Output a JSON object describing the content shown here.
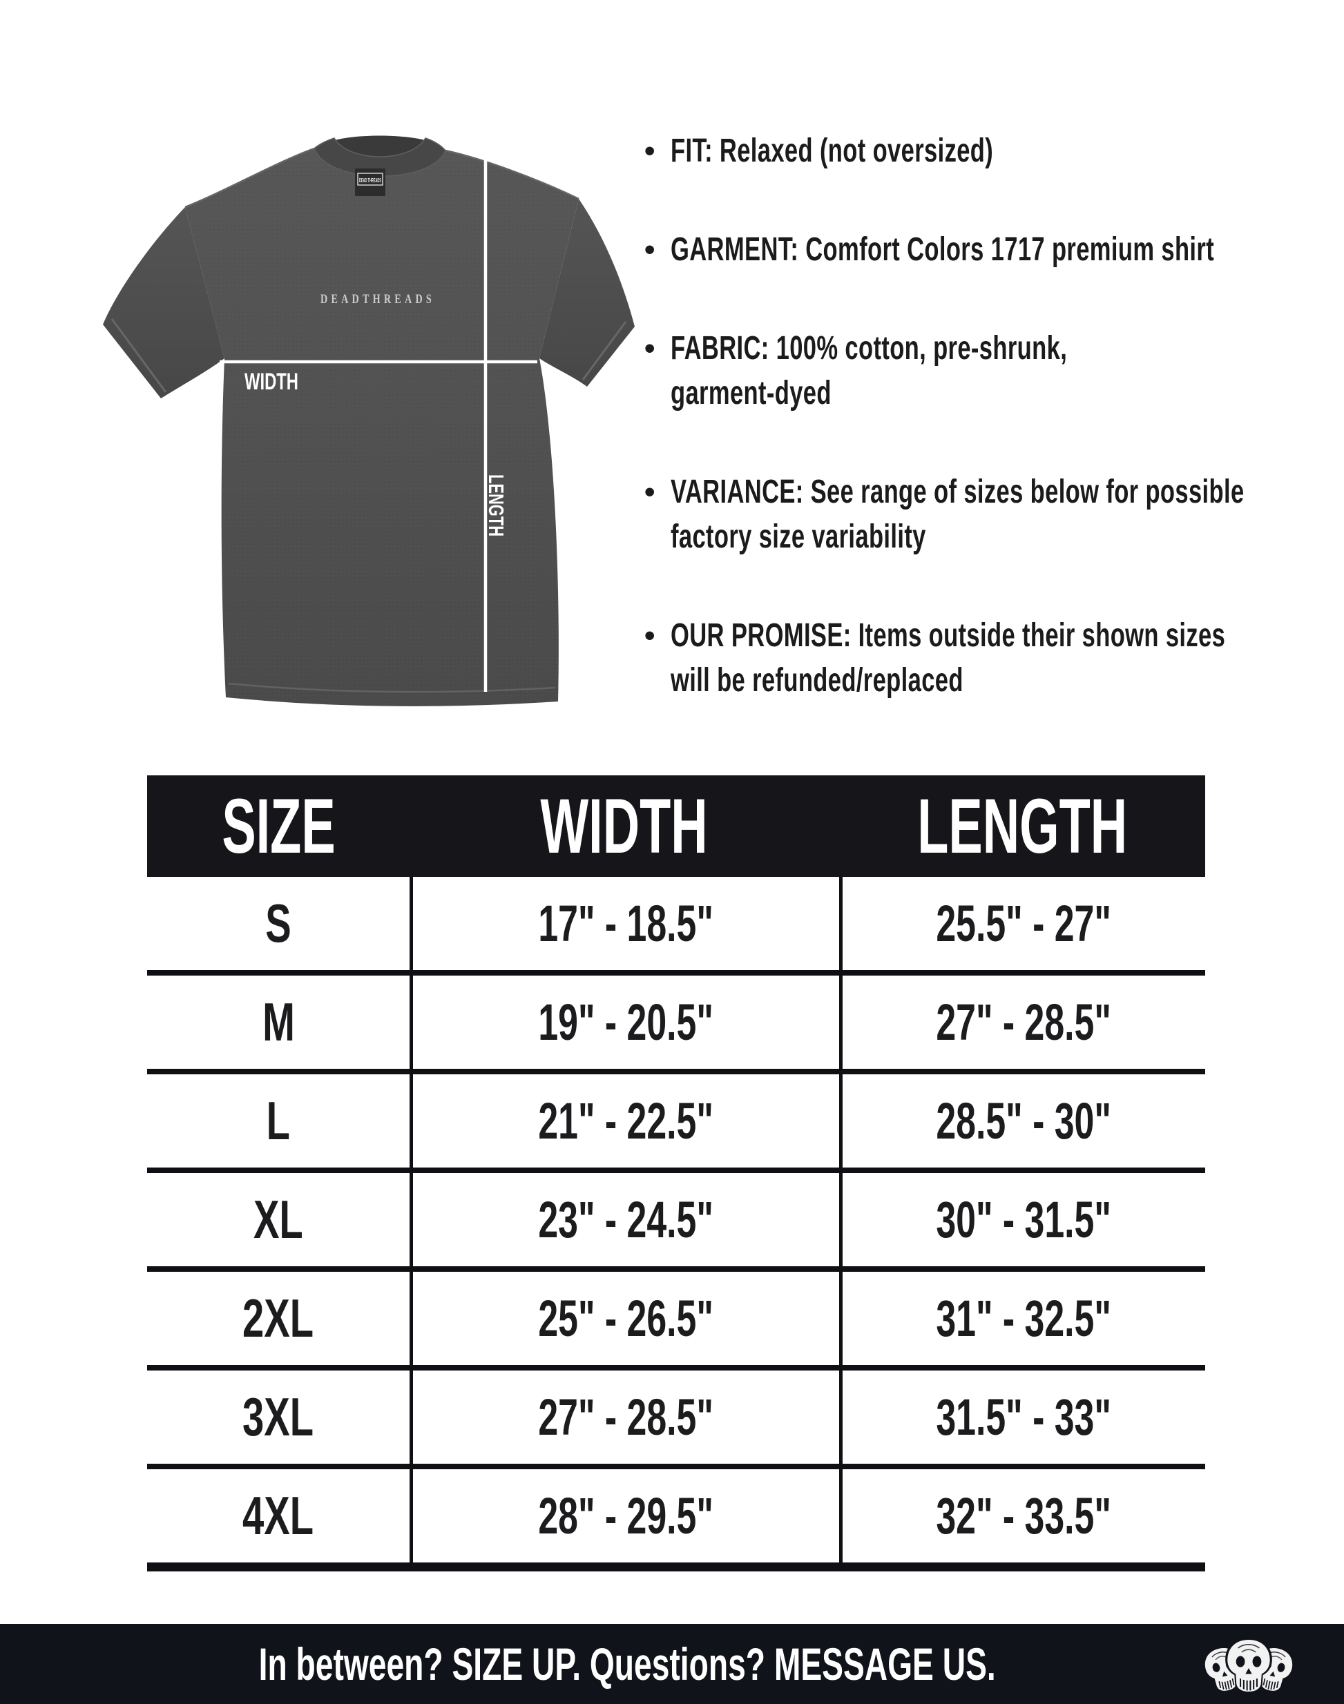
{
  "figure": {
    "brand_print": "DEADTHREADS",
    "neck_tag_text": "DEAD THREADS",
    "width_line_label": "WIDTH",
    "length_line_label": "LENGTH",
    "shirt_color": "#505050",
    "measure_line_color": "#ffffff"
  },
  "details": {
    "items": [
      {
        "lines": [
          "FIT: Relaxed (not oversized)"
        ]
      },
      {
        "lines": [
          "GARMENT: Comfort Colors 1717 premium shirt"
        ]
      },
      {
        "lines": [
          "FABRIC: 100% cotton, pre-shrunk,",
          "garment-dyed"
        ]
      },
      {
        "lines": [
          "VARIANCE: See range of sizes below for possible",
          "factory size variability"
        ]
      },
      {
        "lines": [
          "OUR PROMISE: Items outside their shown sizes",
          "will be refunded/replaced"
        ]
      }
    ]
  },
  "size_chart": {
    "columns": [
      "SIZE",
      "WIDTH",
      "LENGTH"
    ],
    "rows": [
      {
        "size": "S",
        "width": "17\" - 18.5\"",
        "length": "25.5\" - 27\""
      },
      {
        "size": "M",
        "width": "19\" - 20.5\"",
        "length": "27\" - 28.5\""
      },
      {
        "size": "L",
        "width": "21\" - 22.5\"",
        "length": "28.5\" - 30\""
      },
      {
        "size": "XL",
        "width": "23\" - 24.5\"",
        "length": "30\" - 31.5\""
      },
      {
        "size": "2XL",
        "width": "25\" - 26.5\"",
        "length": "31\" - 32.5\""
      },
      {
        "size": "3XL",
        "width": "27\" - 28.5\"",
        "length": "31.5\" - 33\""
      },
      {
        "size": "4XL",
        "width": "28\" - 29.5\"",
        "length": "32\" - 33.5\""
      }
    ],
    "header_bg": "#15151a",
    "grid_color": "#101014"
  },
  "footer": {
    "message": "In between? SIZE UP. Questions? MESSAGE US.",
    "bg": "#10131a",
    "logo": "three-skulls-icon"
  }
}
